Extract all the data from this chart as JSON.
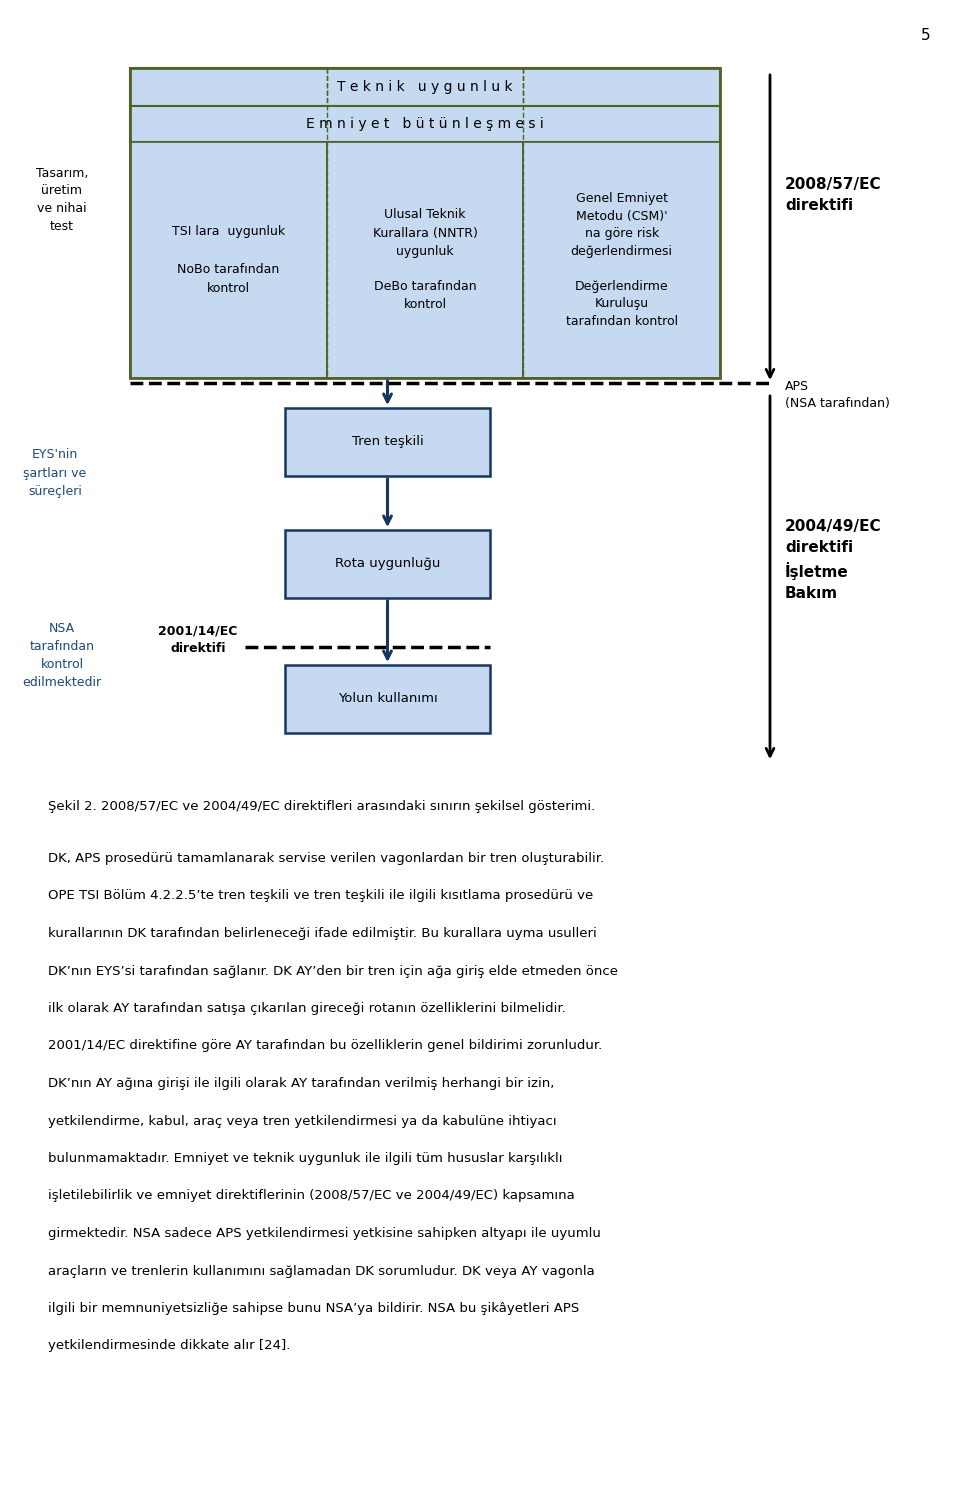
{
  "fig_width": 9.6,
  "fig_height": 14.91,
  "dpi": 100,
  "background_color": "#ffffff",
  "light_blue": "#c5d9f1",
  "dark_blue_edge": "#17375e",
  "olive_edge": "#4f6228",
  "caption": "Şekil 2. 2008/57/EC ve 2004/49/EC direktifleri arasındaki sınırın şekilsel gösterimi.",
  "body_text": [
    "DK, APS prosedürü tamamlanarak servise verilen vagonlardan bir tren oluşturabilir.",
    "OPE TSI Bölüm 4.2.2.5’te tren teşkili ve tren teşkili ile ilgili kısıtlama prosedürü ve",
    "kurallarının DK tarafından belirleneceği ifade edilmiştir. Bu kurallara uyma usulleri",
    "DK’nın EYS’si tarafından sağlanır. DK AY’den bir tren için ağa giriş elde etmeden önce",
    "ilk olarak AY tarafından satışa çıkarılan gireceği rotanın özelliklerini bilmelidir.",
    "2001/14/EC direktifine göre AY tarafından bu özelliklerin genel bildirimi zorunludur.",
    "DK’nın AY ağına girişi ile ilgili olarak AY tarafından verilmiş herhangi bir izin,",
    "yetkilendirme, kabul, araç veya tren yetkilendirmesi ya da kabulüne ihtiyacı",
    "bulunmamaktadır. Emniyet ve teknik uygunluk ile ilgili tüm hususlar karşılıklı",
    "işletilebilirlik ve emniyet direktiflerinin (2008/57/EC ve 2004/49/EC) kapsamına",
    "girmektedir. NSA sadece APS yetkilendirmesi yetkisine sahipken altyapı ile uyumlu",
    "araçların ve trenlerin kullanımını sağlamadan DK sorumludur. DK veya AY vagonla",
    "ilgili bir memnuniyetsizliğe sahipse bunu NSA’ya bildirir. NSA bu şikâyetleri APS",
    "yetkilendirmesinde dikkate alır [24]."
  ]
}
